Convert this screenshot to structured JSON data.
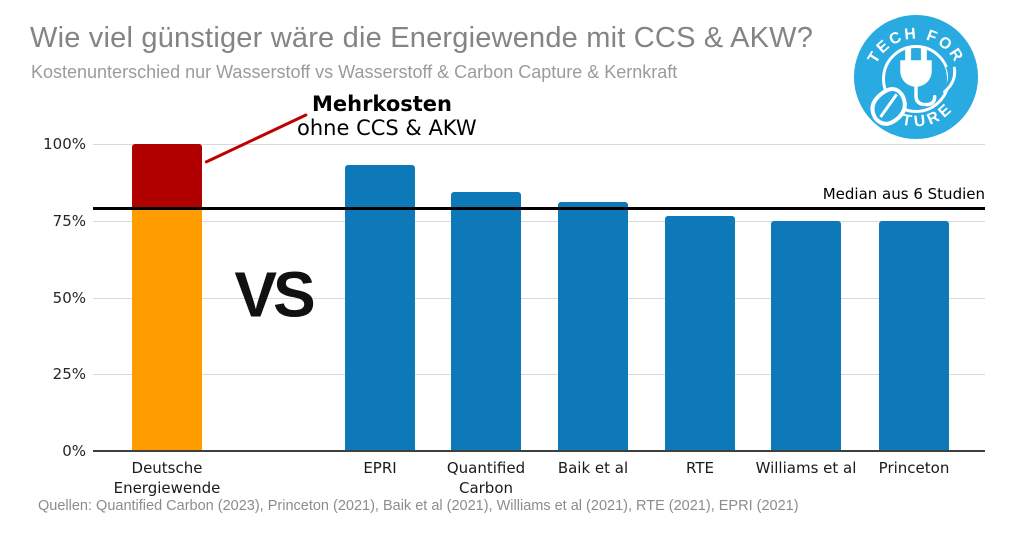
{
  "chart_data": {
    "type": "bar",
    "title": "Wie viel günstiger wäre die Energiewende mit CCS & AKW?",
    "subtitle": "Kostenunterschied nur Wasserstoff vs Wasserstoff & Carbon Capture & Kernkraft",
    "source": "Quellen: Quantified Carbon (2023), Princeton (2021), Baik et al (2021), Williams et al (2021), RTE (2021), EPRI (2021)",
    "ylim": [
      0,
      100
    ],
    "yticks": [
      {
        "value": 0,
        "label": "0%"
      },
      {
        "value": 25,
        "label": "25%"
      },
      {
        "value": 50,
        "label": "50%"
      },
      {
        "value": 75,
        "label": "75%"
      },
      {
        "value": 100,
        "label": "100%"
      }
    ],
    "grid": true,
    "bar_color": "#0E79B8",
    "bars": [
      {
        "category": "Deutsche\nEnergiewende",
        "segments": [
          {
            "value": 79,
            "color": "#FF9D00"
          },
          {
            "value": 21,
            "color": "#B00000",
            "label": "Mehrkosten ohne CCS & AKW"
          }
        ]
      },
      {
        "category": "EPRI",
        "value": 93
      },
      {
        "category": "Quantified\nCarbon",
        "value": 84.5
      },
      {
        "category": "Baik et al",
        "value": 81
      },
      {
        "category": "RTE",
        "value": 76.5
      },
      {
        "category": "Williams et al",
        "value": 75
      },
      {
        "category": "Princeton",
        "value": 75
      }
    ],
    "median_line": {
      "value": 79,
      "label": "Median aus 6 Studien",
      "color": "#000000"
    },
    "annotation": {
      "line1": "Mehrkosten",
      "line2": "ohne CCS & AKW",
      "pointer_color": "#C00000"
    },
    "vs_label": "VS",
    "legend_position": "none"
  },
  "logo": {
    "top_text": "TECH FOR",
    "bottom_text": "FUTURE",
    "color": "#29ABE2"
  }
}
